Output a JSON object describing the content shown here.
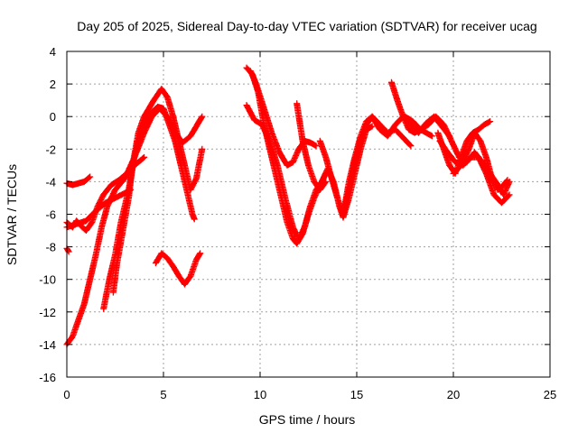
{
  "chart_data": {
    "type": "scatter",
    "title": "Day 205 of 2025, Sidereal Day-to-day VTEC variation (SDTVAR) for receiver ucag",
    "xlabel": "GPS time / hours",
    "ylabel": "SDTVAR / TECUs",
    "xlim": [
      0,
      25
    ],
    "ylim": [
      -16,
      4
    ],
    "x_ticks": [
      0,
      5,
      10,
      15,
      20,
      25
    ],
    "y_ticks": [
      -16,
      -14,
      -12,
      -10,
      -8,
      -6,
      -4,
      -2,
      0,
      2,
      4
    ],
    "grid": true,
    "marker": "+",
    "color": "#ff0000",
    "series": [
      {
        "name": "trace 1",
        "points": [
          [
            0.0,
            -4.1
          ],
          [
            0.3,
            -4.2
          ],
          [
            0.6,
            -4.1
          ],
          [
            0.9,
            -4.0
          ],
          [
            1.2,
            -3.7
          ]
        ]
      },
      {
        "name": "trace 2",
        "points": [
          [
            0.0,
            -8.1
          ],
          [
            0.1,
            -8.3
          ]
        ]
      },
      {
        "name": "trace 3",
        "points": [
          [
            0.0,
            -6.5
          ],
          [
            0.3,
            -6.8
          ],
          [
            0.5,
            -6.4
          ],
          [
            0.8,
            -6.8
          ],
          [
            1.0,
            -7.0
          ],
          [
            1.3,
            -6.5
          ],
          [
            1.6,
            -5.5
          ],
          [
            1.9,
            -4.8
          ],
          [
            2.3,
            -4.2
          ],
          [
            2.7,
            -3.9
          ],
          [
            3.1,
            -3.5
          ],
          [
            3.5,
            -3.0
          ],
          [
            3.9,
            -2.6
          ],
          [
            4.0,
            -2.5
          ]
        ]
      },
      {
        "name": "trace 4",
        "points": [
          [
            0.0,
            -14.0
          ],
          [
            0.3,
            -13.5
          ],
          [
            0.6,
            -12.5
          ],
          [
            0.9,
            -11.5
          ],
          [
            1.2,
            -10.0
          ],
          [
            1.5,
            -8.5
          ],
          [
            1.8,
            -6.8
          ],
          [
            2.1,
            -5.5
          ],
          [
            2.5,
            -4.5
          ],
          [
            3.0,
            -3.8
          ],
          [
            3.5,
            -2.5
          ],
          [
            4.0,
            -1.0
          ],
          [
            4.4,
            0.0
          ],
          [
            4.8,
            0.5
          ],
          [
            5.2,
            0.0
          ],
          [
            5.6,
            -1.0
          ],
          [
            6.0,
            -1.6
          ],
          [
            6.4,
            -1.2
          ],
          [
            6.8,
            -0.4
          ],
          [
            7.0,
            0.0
          ]
        ]
      },
      {
        "name": "trace 5",
        "points": [
          [
            0.0,
            -6.8
          ],
          [
            0.5,
            -6.6
          ],
          [
            1.0,
            -6.4
          ],
          [
            1.5,
            -5.8
          ],
          [
            2.0,
            -5.3
          ],
          [
            2.5,
            -5.0
          ],
          [
            3.0,
            -4.7
          ],
          [
            3.3,
            -4.5
          ]
        ]
      },
      {
        "name": "trace 6",
        "points": [
          [
            1.9,
            -11.8
          ],
          [
            2.2,
            -10.0
          ],
          [
            2.5,
            -8.5
          ],
          [
            2.8,
            -6.5
          ],
          [
            3.2,
            -4.5
          ],
          [
            3.5,
            -2.5
          ],
          [
            3.8,
            -1.0
          ],
          [
            4.2,
            0.0
          ],
          [
            4.7,
            0.6
          ],
          [
            5.0,
            0.5
          ],
          [
            5.3,
            -0.5
          ],
          [
            5.6,
            -1.5
          ],
          [
            5.9,
            -3.0
          ],
          [
            6.2,
            -4.5
          ],
          [
            6.5,
            -6.0
          ],
          [
            6.6,
            -6.3
          ]
        ]
      },
      {
        "name": "trace 7",
        "points": [
          [
            2.4,
            -10.8
          ],
          [
            2.6,
            -9.0
          ],
          [
            2.9,
            -7.0
          ],
          [
            3.2,
            -5.0
          ],
          [
            3.4,
            -3.0
          ],
          [
            3.7,
            -1.0
          ],
          [
            4.0,
            0.0
          ],
          [
            4.5,
            1.0
          ],
          [
            4.9,
            1.7
          ],
          [
            5.2,
            1.2
          ],
          [
            5.5,
            0.0
          ],
          [
            5.8,
            -1.5
          ],
          [
            6.1,
            -3.0
          ],
          [
            6.4,
            -4.5
          ],
          [
            6.7,
            -3.8
          ],
          [
            7.0,
            -2.0
          ]
        ]
      },
      {
        "name": "trace 8",
        "points": [
          [
            4.6,
            -9.0
          ],
          [
            4.9,
            -8.4
          ],
          [
            5.2,
            -8.7
          ],
          [
            5.5,
            -9.2
          ],
          [
            5.8,
            -9.8
          ],
          [
            6.1,
            -10.3
          ],
          [
            6.4,
            -9.8
          ],
          [
            6.7,
            -8.8
          ],
          [
            6.9,
            -8.4
          ]
        ]
      },
      {
        "name": "trace 9",
        "points": [
          [
            9.3,
            3.0
          ],
          [
            9.6,
            2.6
          ],
          [
            9.9,
            1.5
          ],
          [
            10.2,
            -0.5
          ],
          [
            10.5,
            -2.0
          ],
          [
            10.8,
            -3.5
          ],
          [
            11.1,
            -5.0
          ],
          [
            11.4,
            -6.5
          ],
          [
            11.7,
            -7.5
          ],
          [
            11.9,
            -7.8
          ],
          [
            12.2,
            -7.2
          ],
          [
            12.5,
            -6.0
          ],
          [
            12.8,
            -5.0
          ],
          [
            13.1,
            -4.2
          ],
          [
            13.4,
            -3.5
          ]
        ]
      },
      {
        "name": "trace 10",
        "points": [
          [
            9.5,
            2.8
          ],
          [
            9.8,
            2.0
          ],
          [
            10.2,
            0.5
          ],
          [
            10.6,
            -1.0
          ],
          [
            11.0,
            -2.2
          ],
          [
            11.4,
            -3.0
          ],
          [
            11.7,
            -2.8
          ],
          [
            12.0,
            -2.0
          ],
          [
            12.3,
            -1.5
          ],
          [
            12.6,
            -1.6
          ],
          [
            12.9,
            -1.8
          ]
        ]
      },
      {
        "name": "trace 11",
        "points": [
          [
            9.3,
            0.7
          ],
          [
            9.7,
            -0.2
          ],
          [
            10.1,
            -0.5
          ],
          [
            10.5,
            -1.5
          ],
          [
            10.9,
            -3.0
          ],
          [
            11.3,
            -5.0
          ],
          [
            11.7,
            -6.8
          ],
          [
            12.0,
            -7.5
          ],
          [
            12.3,
            -6.8
          ],
          [
            12.6,
            -5.5
          ],
          [
            12.9,
            -4.5
          ],
          [
            13.2,
            -4.0
          ],
          [
            13.5,
            -3.2
          ],
          [
            13.8,
            -4.0
          ],
          [
            14.1,
            -5.5
          ],
          [
            14.3,
            -6.2
          ],
          [
            14.6,
            -5.0
          ],
          [
            14.9,
            -3.5
          ],
          [
            15.2,
            -2.0
          ],
          [
            15.5,
            -0.8
          ],
          [
            15.8,
            -0.6
          ]
        ]
      },
      {
        "name": "trace 12",
        "points": [
          [
            11.9,
            0.8
          ],
          [
            12.2,
            -1.5
          ],
          [
            12.5,
            -3.0
          ],
          [
            12.8,
            -4.0
          ],
          [
            13.1,
            -4.5
          ],
          [
            13.4,
            -4.0
          ]
        ]
      },
      {
        "name": "trace 13",
        "points": [
          [
            13.1,
            -1.5
          ],
          [
            13.4,
            -2.5
          ],
          [
            13.7,
            -3.8
          ],
          [
            14.0,
            -5.0
          ],
          [
            14.3,
            -6.0
          ],
          [
            14.6,
            -4.5
          ],
          [
            14.9,
            -2.8
          ],
          [
            15.2,
            -1.5
          ],
          [
            15.5,
            -0.5
          ],
          [
            15.8,
            0.0
          ],
          [
            16.2,
            -0.5
          ],
          [
            16.6,
            -1.0
          ],
          [
            17.0,
            -0.8
          ],
          [
            17.4,
            -1.3
          ],
          [
            17.8,
            -1.8
          ]
        ]
      },
      {
        "name": "trace 14",
        "points": [
          [
            14.3,
            -6.0
          ],
          [
            14.6,
            -4.0
          ],
          [
            14.9,
            -2.5
          ],
          [
            15.2,
            -1.2
          ],
          [
            15.5,
            -0.3
          ],
          [
            15.8,
            0.0
          ],
          [
            16.2,
            -0.8
          ],
          [
            16.6,
            -1.2
          ],
          [
            17.0,
            -0.5
          ],
          [
            17.4,
            0.0
          ],
          [
            17.8,
            -0.5
          ],
          [
            18.2,
            -1.0
          ],
          [
            18.6,
            -0.4
          ],
          [
            19.0,
            0.0
          ],
          [
            19.4,
            -0.6
          ],
          [
            19.8,
            -1.2
          ]
        ]
      },
      {
        "name": "trace 15",
        "points": [
          [
            16.8,
            2.1
          ],
          [
            17.1,
            1.0
          ],
          [
            17.4,
            0.0
          ],
          [
            17.7,
            -0.8
          ],
          [
            18.0,
            -1.0
          ],
          [
            18.3,
            -0.8
          ],
          [
            18.6,
            -1.0
          ],
          [
            18.9,
            -1.2
          ]
        ]
      },
      {
        "name": "trace 16",
        "points": [
          [
            17.5,
            0.0
          ],
          [
            17.9,
            -0.3
          ],
          [
            18.3,
            -0.8
          ],
          [
            18.7,
            -0.5
          ],
          [
            19.1,
            0.0
          ],
          [
            19.5,
            -0.5
          ],
          [
            19.9,
            -1.5
          ],
          [
            20.3,
            -2.5
          ],
          [
            20.7,
            -2.8
          ],
          [
            21.1,
            -2.2
          ],
          [
            21.5,
            -2.8
          ],
          [
            21.9,
            -3.5
          ],
          [
            22.3,
            -4.2
          ],
          [
            22.6,
            -4.8
          ],
          [
            22.9,
            -4.0
          ]
        ]
      },
      {
        "name": "trace 17",
        "points": [
          [
            19.2,
            -1.0
          ],
          [
            19.5,
            -2.0
          ],
          [
            19.8,
            -3.0
          ],
          [
            20.1,
            -3.5
          ],
          [
            20.4,
            -2.5
          ],
          [
            20.7,
            -1.5
          ],
          [
            21.0,
            -1.0
          ],
          [
            21.3,
            -0.8
          ],
          [
            21.6,
            -0.5
          ],
          [
            21.9,
            -0.3
          ]
        ]
      },
      {
        "name": "trace 18",
        "points": [
          [
            19.3,
            -1.5
          ],
          [
            19.7,
            -2.2
          ],
          [
            20.1,
            -2.8
          ],
          [
            20.5,
            -3.0
          ],
          [
            20.9,
            -2.5
          ],
          [
            21.3,
            -2.5
          ],
          [
            21.7,
            -3.5
          ],
          [
            22.1,
            -4.8
          ],
          [
            22.5,
            -5.3
          ],
          [
            22.9,
            -4.8
          ]
        ]
      },
      {
        "name": "trace 19",
        "points": [
          [
            20.0,
            -3.5
          ],
          [
            20.4,
            -3.0
          ],
          [
            20.8,
            -2.0
          ],
          [
            21.1,
            -1.0
          ],
          [
            21.4,
            -1.5
          ],
          [
            21.7,
            -2.5
          ],
          [
            22.0,
            -3.8
          ],
          [
            22.3,
            -4.5
          ],
          [
            22.6,
            -4.2
          ],
          [
            22.8,
            -3.9
          ]
        ]
      }
    ]
  }
}
